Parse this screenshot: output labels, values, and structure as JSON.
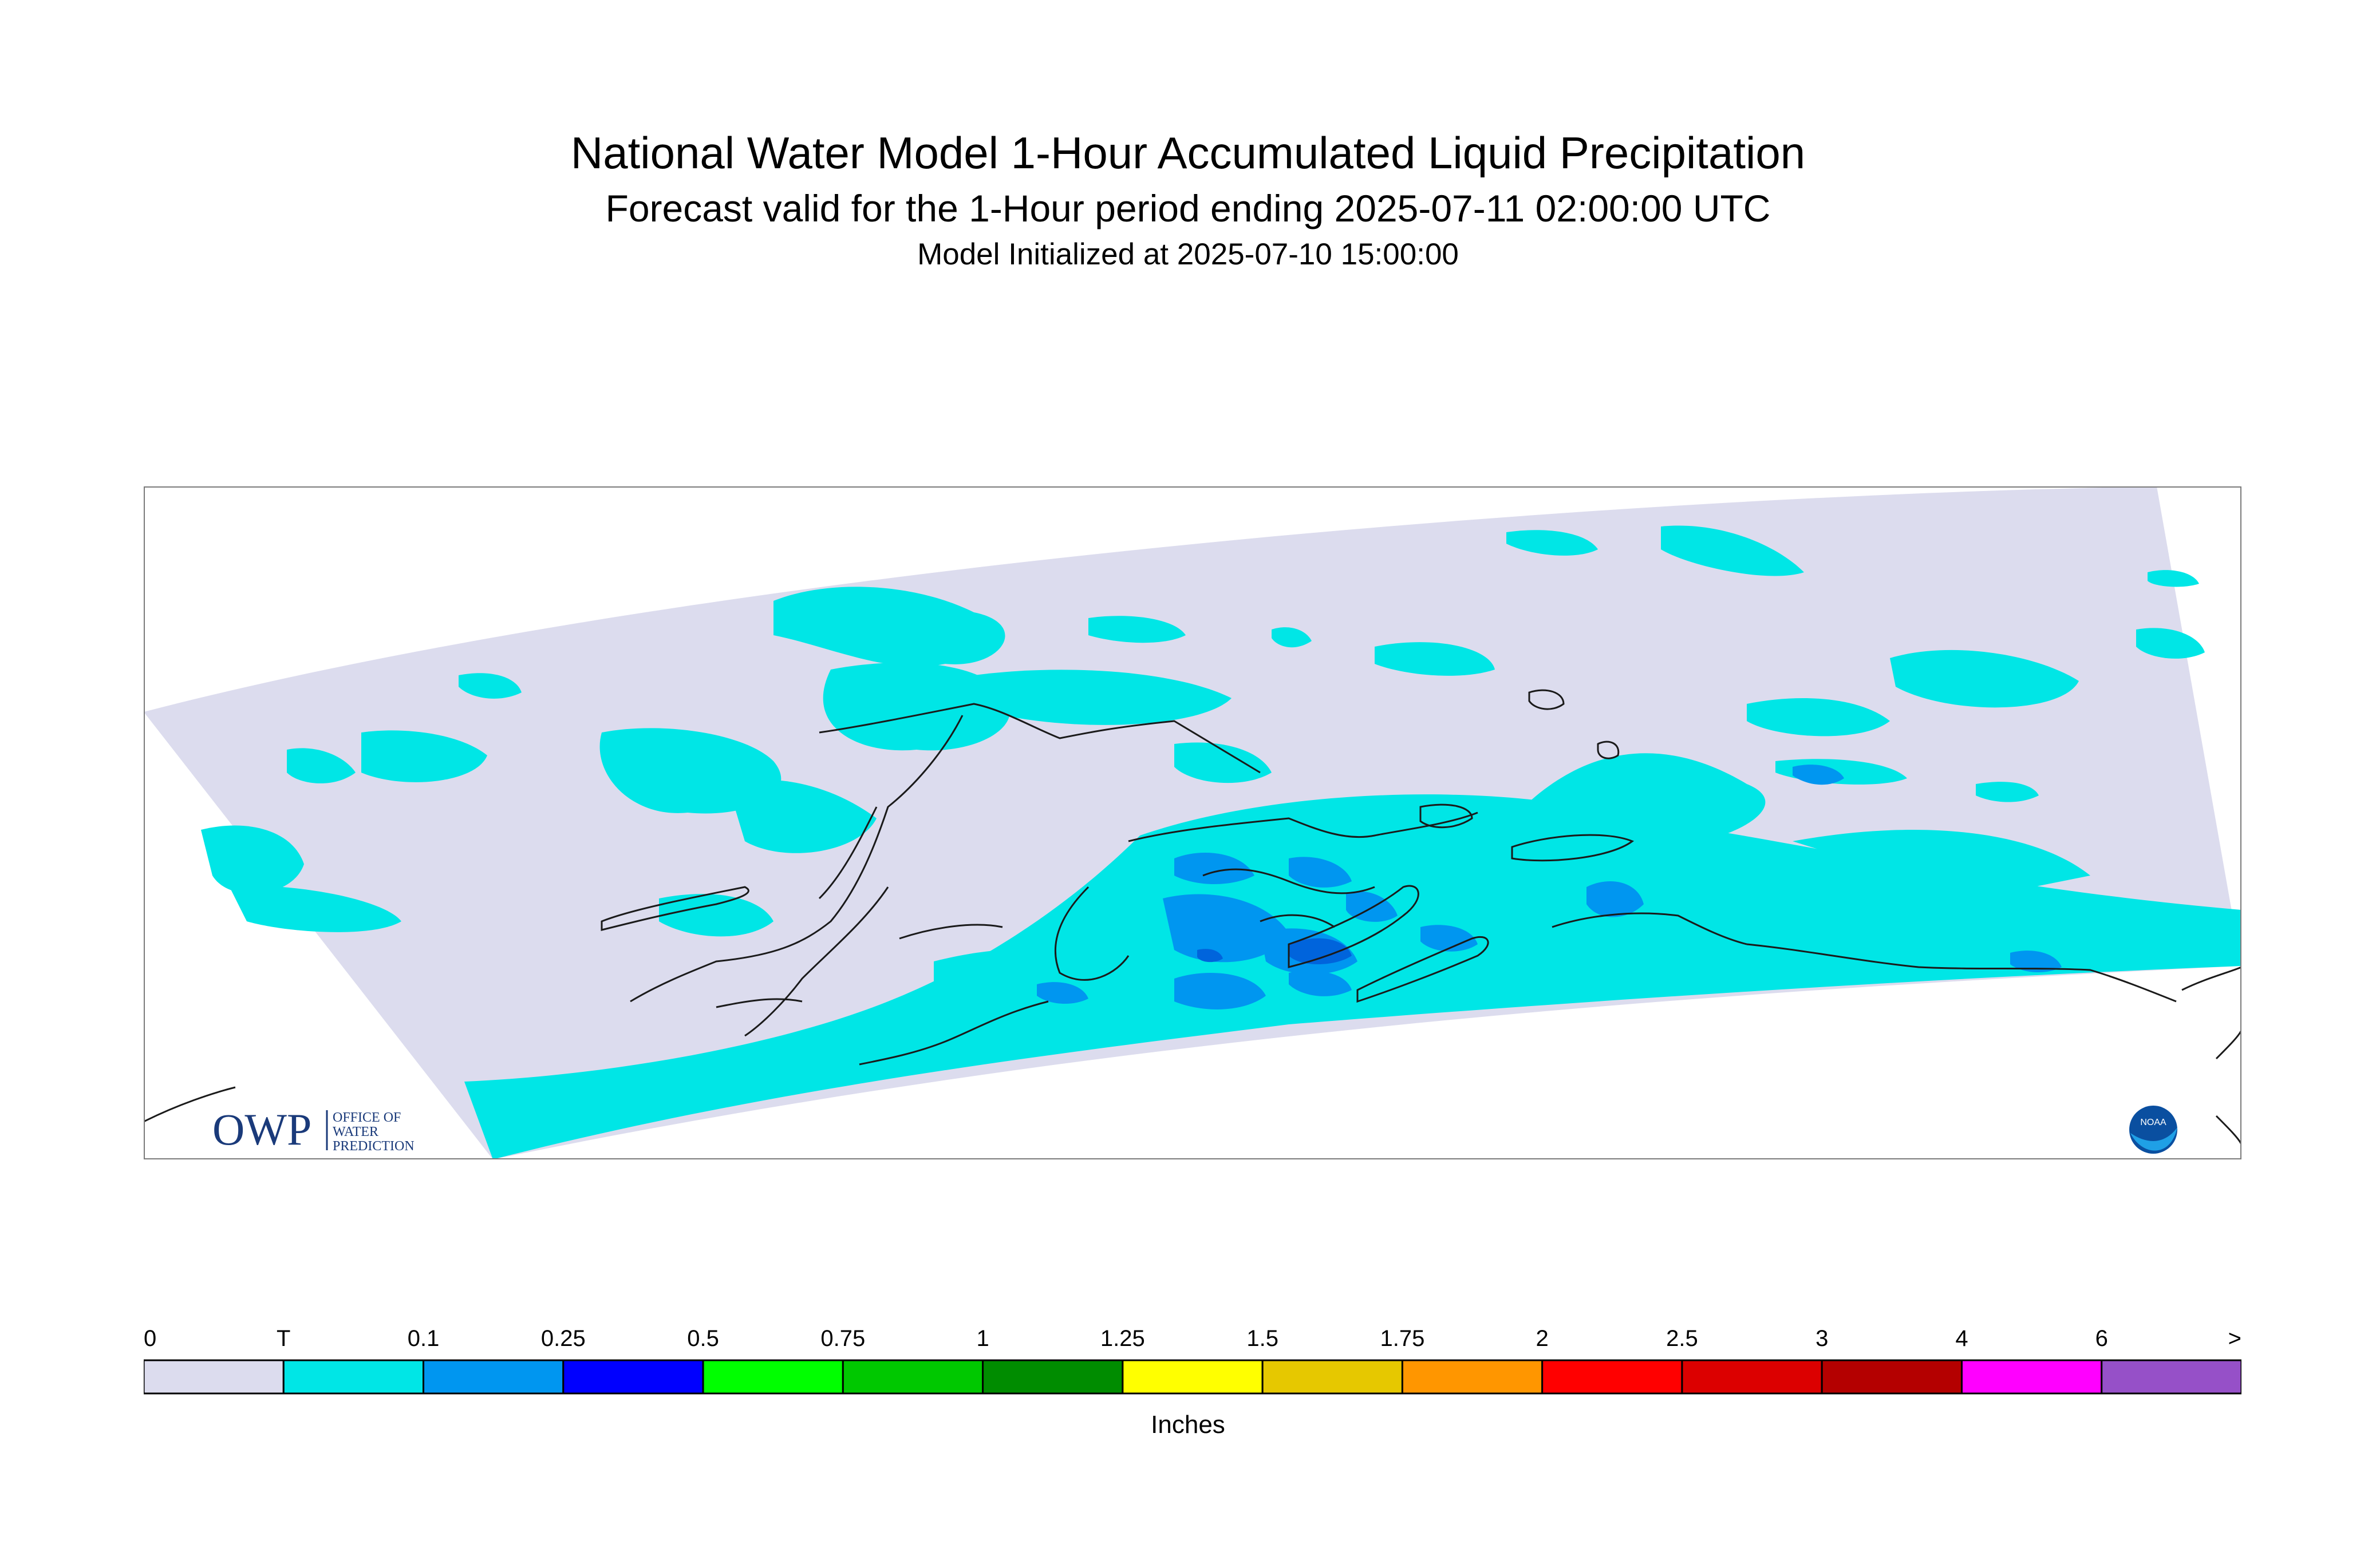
{
  "title": "National Water Model 1-Hour Accumulated Liquid Precipitation",
  "subtitle": "Forecast valid for the 1-Hour period ending 2025-07-11 02:00:00 UTC",
  "init_line": "Model Initialized at 2025-07-10 15:00:00",
  "logo_left": {
    "mark": "OWP",
    "line1": "OFFICE OF",
    "line2": "WATER",
    "line3": "PREDICTION"
  },
  "logo_right": {
    "mark": "NOAA"
  },
  "legend": {
    "units": "Inches",
    "labels": [
      "0",
      "T",
      "0.1",
      "0.25",
      "0.5",
      "0.75",
      "1",
      "1.25",
      "1.5",
      "1.75",
      "2",
      "2.5",
      "3",
      "4",
      "6",
      ">"
    ],
    "colors": [
      "#dcdcee",
      "#00e6e6",
      "#0096f0",
      "#0000ff",
      "#00ff00",
      "#00c800",
      "#008c00",
      "#ffff00",
      "#e6c800",
      "#ff9600",
      "#ff0000",
      "#dc0000",
      "#b40000",
      "#ff00ff",
      "#9650c8"
    ]
  },
  "map_colors": {
    "no_precip": "#dcdcee",
    "trace": "#00e6e6",
    "light": "#0096f0",
    "coast": "#1a1a1a"
  }
}
